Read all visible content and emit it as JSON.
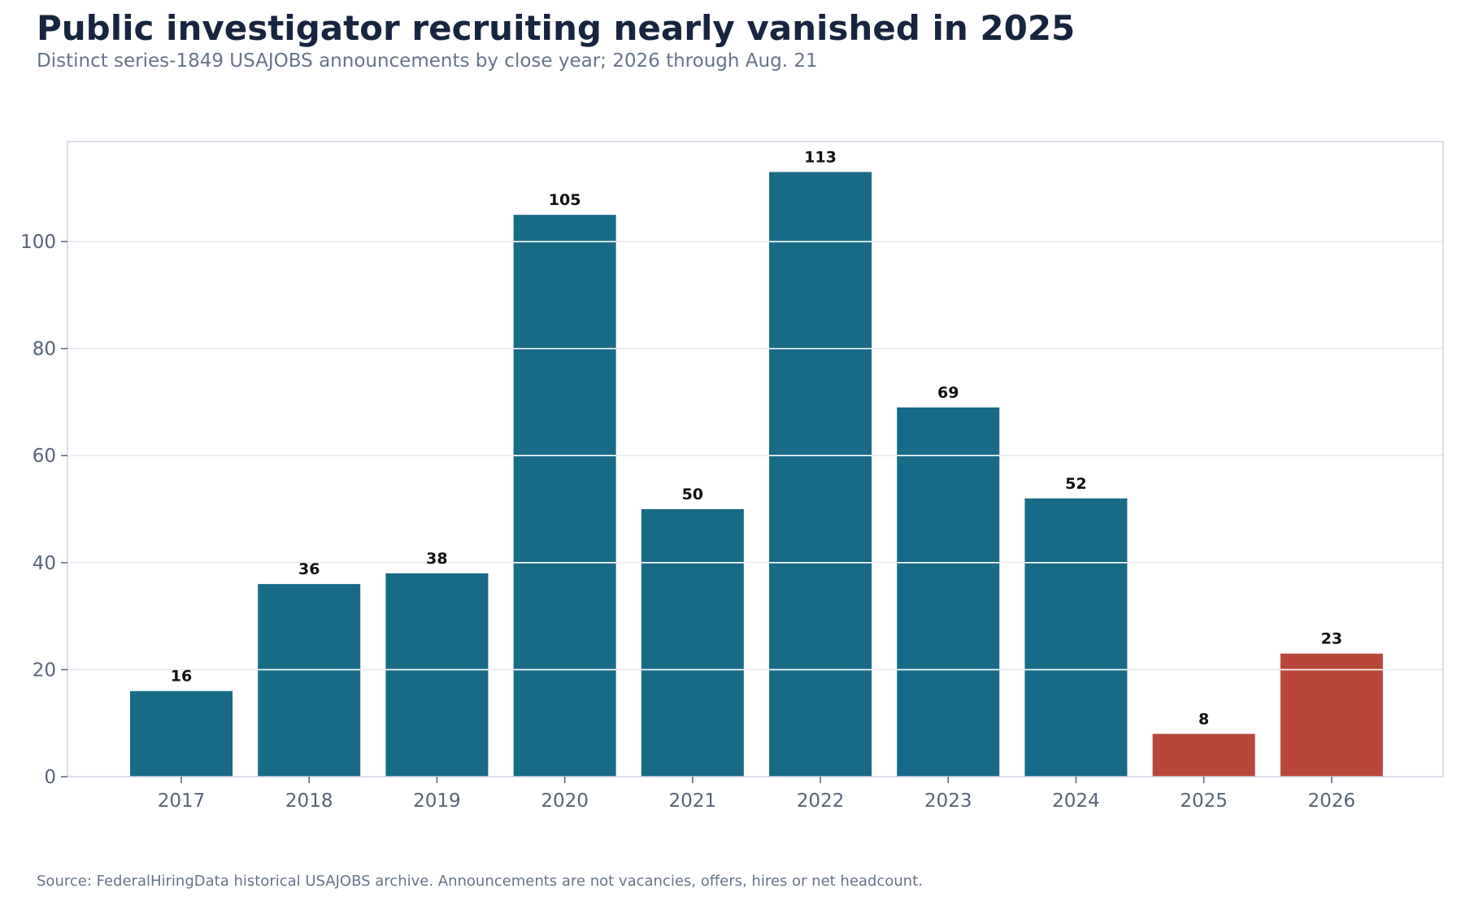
{
  "chart_data": {
    "type": "bar",
    "title": "Public investigator recruiting nearly vanished in 2025",
    "subtitle": "Distinct series-1849 USAJOBS announcements by close year; 2026 through Aug. 21",
    "source": "Source: FederalHiringData historical USAJOBS archive. Announcements are not vacancies, offers, hires or net headcount.",
    "xlabel": "",
    "ylabel": "",
    "categories": [
      "2017",
      "2018",
      "2019",
      "2020",
      "2021",
      "2022",
      "2023",
      "2024",
      "2025",
      "2026"
    ],
    "values": [
      16,
      36,
      38,
      105,
      50,
      113,
      69,
      52,
      8,
      23
    ],
    "data_labels": [
      "16",
      "36",
      "38",
      "105",
      "50",
      "113",
      "69",
      "52",
      "8",
      "23"
    ],
    "highlighted": [
      false,
      false,
      false,
      false,
      false,
      false,
      false,
      false,
      true,
      true
    ],
    "ylim": [
      0,
      118.7
    ],
    "yticks": [
      0,
      20,
      40,
      60,
      80,
      100
    ],
    "ytick_labels": [
      "0",
      "20",
      "40",
      "60",
      "80",
      "100"
    ],
    "grid": "horizontal",
    "legend": "none",
    "colors": {
      "bar": "#186b87",
      "highlight": "#b8473a",
      "grid": "#e6e9ef",
      "frame": "#cfd4e3"
    }
  }
}
